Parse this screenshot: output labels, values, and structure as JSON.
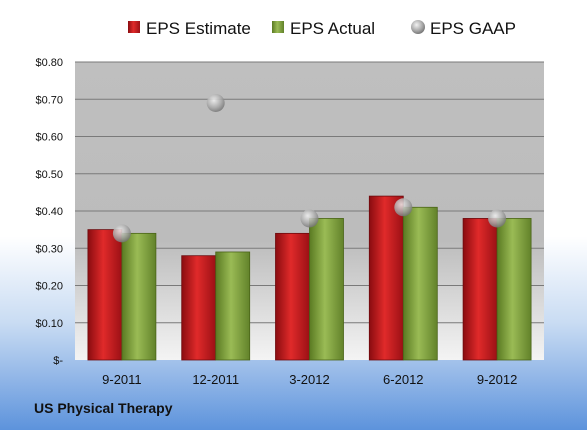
{
  "chart_data": {
    "type": "bar",
    "company": "US Physical Therapy",
    "categories": [
      "9-2011",
      "12-2011",
      "3-2012",
      "6-2012",
      "9-2012"
    ],
    "series": [
      {
        "name": "EPS Estimate",
        "kind": "bar",
        "color": "#c8161d",
        "values": [
          0.35,
          0.28,
          0.34,
          0.44,
          0.38
        ]
      },
      {
        "name": "EPS Actual",
        "kind": "bar",
        "color": "#7a9a3a",
        "values": [
          0.34,
          0.29,
          0.38,
          0.41,
          0.38
        ]
      },
      {
        "name": "EPS GAAP",
        "kind": "marker",
        "color": "#b0b0b0",
        "values": [
          0.34,
          0.69,
          0.38,
          0.41,
          0.38
        ]
      }
    ],
    "y_ticks": [
      "$-",
      "$0.10",
      "$0.20",
      "$0.30",
      "$0.40",
      "$0.50",
      "$0.60",
      "$0.70",
      "$0.80"
    ],
    "ylim": [
      0,
      0.8
    ],
    "grid": true,
    "legend_position": "top"
  }
}
